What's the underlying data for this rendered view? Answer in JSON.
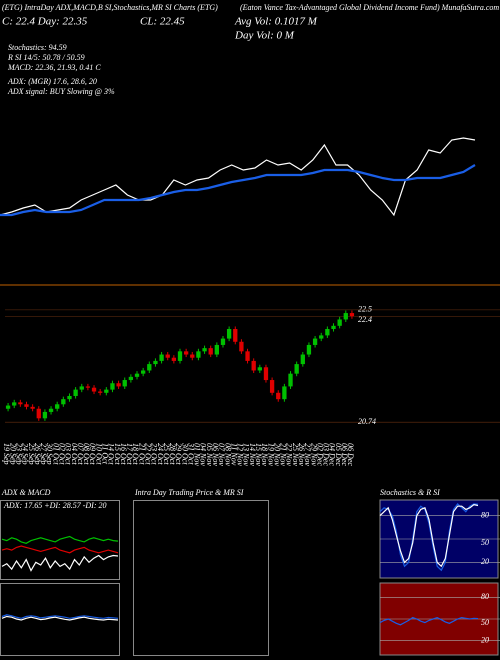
{
  "header": {
    "title": "(ETG) IntraDay ADX,MACD,B SI,Stochastics,MR SI Charts (ETG)",
    "close_line": "C: 22.4  Day: 22.35",
    "cl": "CL: 22.45",
    "avg_vol": "Avg Vol: 0.1017 M",
    "day_vol": "Day Vol: 0  M",
    "name": "(Eaton Vance Tax-Advantaged Global Dividend Income Fund) MunafaSutra.com",
    "stoch": "Stochastics: 94.59",
    "rsi": "R        SI 14/5: 50.78 / 50.59",
    "macd": "MACD: 22.36, 21.93, 0.41 C",
    "adx": "ADX:                  (MGR) 17.6, 28.6, 20",
    "adx_signal": "ADX  signal:                  BUY Slowing @ 3%"
  },
  "chart_data": [
    {
      "type": "line",
      "ylim": [
        20.0,
        23.2
      ],
      "series": [
        {
          "color": "#ffffff",
          "values": [
            20.9,
            20.96,
            21.04,
            21.1,
            20.96,
            21.0,
            21.04,
            21.2,
            21.3,
            21.4,
            21.5,
            21.3,
            21.2,
            21.2,
            21.3,
            21.6,
            21.5,
            21.6,
            21.64,
            21.8,
            21.9,
            21.8,
            21.84,
            22.0,
            21.9,
            21.94,
            21.8,
            22.0,
            22.3,
            21.9,
            21.9,
            21.7,
            21.4,
            21.2,
            20.9,
            21.6,
            21.8,
            22.2,
            22.14,
            22.4,
            22.44,
            22.4
          ]
        },
        {
          "color": "#1a5ee6",
          "values": [
            20.9,
            20.9,
            20.96,
            21.0,
            20.96,
            20.96,
            20.96,
            21.0,
            21.1,
            21.2,
            21.2,
            21.2,
            21.2,
            21.24,
            21.3,
            21.36,
            21.4,
            21.4,
            21.44,
            21.5,
            21.56,
            21.6,
            21.64,
            21.7,
            21.7,
            21.7,
            21.7,
            21.74,
            21.8,
            21.8,
            21.8,
            21.76,
            21.7,
            21.64,
            21.6,
            21.6,
            21.64,
            21.64,
            21.64,
            21.7,
            21.76,
            21.9
          ]
        }
      ]
    },
    {
      "type": "candlestick",
      "ylim": [
        20.46,
        22.89
      ],
      "yticks": [
        22.5,
        22.4,
        20.74
      ],
      "up_color": "#00c000",
      "down_color": "#e00000",
      "categories": [
        "19 Sep",
        "20 Sep",
        "23 Sep",
        "24 Sep",
        "25 Sep",
        "26 Sep",
        "27 Sep",
        "30 Sep",
        "01 Oct",
        "02 Oct",
        "03 Oct",
        "04 Oct",
        "07 Oct",
        "08 Oct",
        "09 Oct",
        "10 Oct",
        "11 Oct",
        "14 Oct",
        "15 Oct",
        "16 Oct",
        "17 Oct",
        "18 Oct",
        "21 Oct",
        "22 Oct",
        "23 Oct",
        "24 Oct",
        "25 Oct",
        "28 Oct",
        "29 Oct",
        "30 Oct",
        "31 Oct",
        "01 Nov",
        "04 Nov",
        "05 Nov",
        "06 Nov",
        "07 Nov",
        "08 Nov",
        "11 Nov",
        "12 Nov",
        "13 Nov",
        "14 Nov",
        "15 Nov",
        "18 Nov",
        "19 Nov",
        "20 Nov",
        "21 Nov",
        "22 Nov",
        "25 Nov",
        "26 Nov",
        "27 Nov",
        "29 Nov",
        "02 Dec",
        "03 Dec",
        "04 Dec",
        "05 Dec",
        "06 Dec",
        "06 Dec"
      ],
      "open": [
        20.95,
        21.0,
        21.05,
        21.02,
        20.98,
        20.95,
        20.8,
        20.9,
        20.95,
        21.02,
        21.1,
        21.15,
        21.25,
        21.3,
        21.28,
        21.22,
        21.2,
        21.25,
        21.35,
        21.3,
        21.4,
        21.45,
        21.5,
        21.55,
        21.65,
        21.7,
        21.8,
        21.75,
        21.7,
        21.85,
        21.8,
        21.75,
        21.85,
        21.9,
        21.8,
        21.95,
        22.05,
        22.2,
        22.0,
        21.85,
        21.7,
        21.55,
        21.6,
        21.4,
        21.2,
        21.1,
        21.3,
        21.5,
        21.65,
        21.8,
        21.95,
        22.05,
        22.1,
        22.2,
        22.25,
        22.35,
        22.45
      ],
      "high": [
        21.04,
        21.09,
        21.09,
        21.06,
        21.02,
        20.99,
        20.94,
        20.99,
        21.06,
        21.14,
        21.19,
        21.29,
        21.34,
        21.34,
        21.32,
        21.26,
        21.29,
        21.39,
        21.39,
        21.44,
        21.49,
        21.54,
        21.59,
        21.69,
        21.74,
        21.84,
        21.84,
        21.79,
        21.89,
        21.89,
        21.84,
        21.89,
        21.94,
        21.94,
        21.99,
        22.09,
        22.24,
        22.24,
        22.04,
        21.89,
        21.74,
        21.64,
        21.64,
        21.44,
        21.24,
        21.34,
        21.54,
        21.69,
        21.84,
        21.99,
        22.09,
        22.14,
        22.24,
        22.29,
        22.39,
        22.49,
        22.49
      ],
      "low": [
        20.91,
        20.96,
        20.98,
        20.94,
        20.91,
        20.76,
        20.76,
        20.86,
        20.91,
        20.98,
        21.06,
        21.11,
        21.21,
        21.24,
        21.18,
        21.16,
        21.16,
        21.21,
        21.26,
        21.26,
        21.36,
        21.41,
        21.46,
        21.51,
        21.61,
        21.66,
        21.71,
        21.66,
        21.66,
        21.76,
        21.71,
        21.71,
        21.81,
        21.76,
        21.76,
        21.91,
        22.01,
        21.96,
        21.81,
        21.66,
        21.51,
        21.51,
        21.36,
        21.16,
        21.06,
        21.06,
        21.26,
        21.46,
        21.61,
        21.76,
        21.91,
        22.01,
        22.06,
        22.16,
        22.21,
        22.31,
        22.36
      ],
      "close": [
        21.0,
        21.05,
        21.02,
        20.98,
        20.95,
        20.8,
        20.9,
        20.95,
        21.02,
        21.1,
        21.15,
        21.25,
        21.3,
        21.28,
        21.22,
        21.2,
        21.25,
        21.35,
        21.3,
        21.4,
        21.45,
        21.5,
        21.55,
        21.65,
        21.7,
        21.8,
        21.75,
        21.7,
        21.85,
        21.8,
        21.75,
        21.85,
        21.9,
        21.8,
        21.95,
        22.05,
        22.2,
        22.0,
        21.85,
        21.7,
        21.55,
        21.6,
        21.4,
        21.2,
        21.1,
        21.3,
        21.5,
        21.65,
        21.8,
        21.95,
        22.05,
        22.1,
        22.2,
        22.25,
        22.35,
        22.45,
        22.4
      ]
    },
    {
      "type": "line",
      "title": "ADX  & MACD",
      "note": "ADX: 17.65  +DI: 28.57  -DI: 20",
      "ylim": [
        0,
        50
      ],
      "series": [
        {
          "color": "#00c000",
          "values": [
            30,
            29,
            31,
            30,
            28,
            27,
            29,
            30,
            31,
            30,
            29,
            28,
            30,
            31,
            32,
            30,
            29,
            28,
            30,
            31,
            30,
            29,
            30,
            29,
            28.57
          ]
        },
        {
          "color": "#e00000",
          "values": [
            22,
            23,
            22,
            24,
            25,
            24,
            23,
            22,
            21,
            22,
            23,
            24,
            22,
            21,
            20,
            22,
            23,
            24,
            22,
            21,
            20,
            21,
            22,
            21,
            20
          ]
        },
        {
          "color": "#ffffff",
          "values": [
            10,
            12,
            8,
            14,
            9,
            15,
            7,
            13,
            11,
            16,
            9,
            14,
            10,
            12,
            8,
            15,
            11,
            17,
            13,
            16,
            18,
            15,
            17,
            18,
            17.65
          ]
        }
      ]
    },
    {
      "type": "line",
      "ylim": [
        -1,
        1
      ],
      "series": [
        {
          "color": "#1a5ee6",
          "values": [
            0.1,
            0.15,
            0.12,
            0.08,
            0.05,
            0.1,
            0.12,
            0.1,
            0.06,
            0.08,
            0.1,
            0.12,
            0.1,
            0.08,
            0.05,
            0.07,
            0.1,
            0.12,
            0.1,
            0.08,
            0.06,
            0.05,
            0.07,
            0.06,
            0.05
          ]
        },
        {
          "color": "#ffffff",
          "values": [
            0.05,
            0.1,
            0.08,
            0.03,
            0.0,
            0.05,
            0.08,
            0.05,
            0.01,
            0.03,
            0.06,
            0.08,
            0.05,
            0.02,
            0.0,
            0.03,
            0.06,
            0.08,
            0.05,
            0.03,
            0.01,
            0.0,
            0.02,
            0.01,
            0.0
          ]
        }
      ]
    },
    {
      "type": "line",
      "title": "Intra  Day Trading Price  & MR                SI",
      "series": []
    },
    {
      "type": "line",
      "title": "Stochastics & R                SI",
      "ylim": [
        0,
        100
      ],
      "yticks": [
        80,
        50,
        20
      ],
      "background": "#000066",
      "series": [
        {
          "color": "#1a5ee6",
          "values": [
            85,
            90,
            88,
            80,
            60,
            30,
            15,
            20,
            50,
            85,
            92,
            88,
            70,
            40,
            15,
            10,
            20,
            60,
            88,
            95,
            90,
            85,
            92,
            95,
            94.59
          ]
        },
        {
          "color": "#ffffff",
          "values": [
            80,
            85,
            90,
            75,
            55,
            35,
            20,
            25,
            45,
            80,
            88,
            90,
            75,
            45,
            20,
            15,
            25,
            55,
            85,
            92,
            92,
            88,
            90,
            94,
            93
          ]
        }
      ]
    },
    {
      "type": "line",
      "ylim": [
        0,
        100
      ],
      "yticks": [
        80,
        50,
        20
      ],
      "background": "#800000",
      "series": [
        {
          "color": "#1a5ee6",
          "values": [
            45,
            48,
            50,
            47,
            44,
            42,
            45,
            48,
            52,
            50,
            47,
            45,
            48,
            50,
            52,
            49,
            46,
            44,
            47,
            50,
            52,
            51,
            50,
            51,
            50.59
          ]
        }
      ]
    }
  ]
}
